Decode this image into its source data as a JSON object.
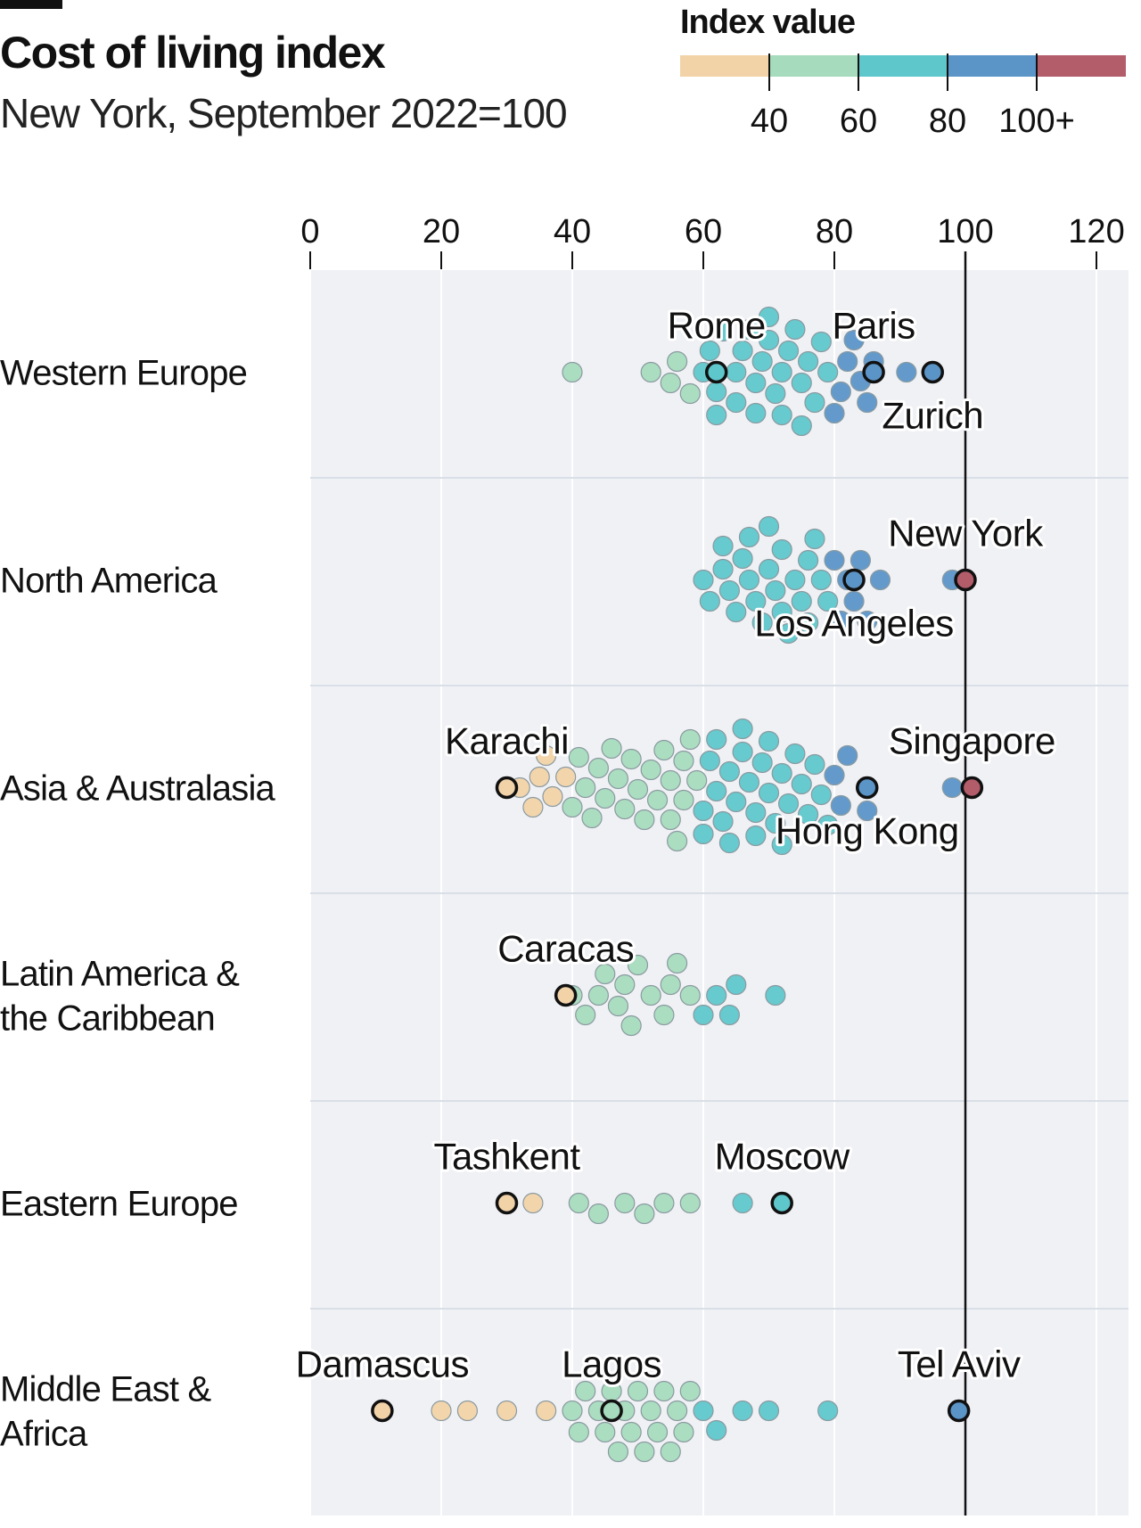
{
  "header": {
    "title": "Cost of living index",
    "subtitle": "New York, September 2022=100",
    "legend_title": "Index value"
  },
  "legend": {
    "ticks": [
      "40",
      "60",
      "80",
      "100+"
    ],
    "colors": [
      "#f2d3a8",
      "#a6dbbd",
      "#5ec7cb",
      "#5b95c8",
      "#b35c6a"
    ]
  },
  "chart_data": {
    "type": "scatter",
    "title": "Cost of living index",
    "subtitle": "New York, September 2022=100",
    "x_ticks": [
      "0",
      "20",
      "40",
      "60",
      "80",
      "100",
      "120"
    ],
    "xlim": [
      0,
      125
    ],
    "reference_line": 100,
    "grid": true,
    "color_bins": [
      {
        "max": 40,
        "color": "#f2d3a8"
      },
      {
        "max": 60,
        "color": "#a6dbbd"
      },
      {
        "max": 80,
        "color": "#5ec7cb"
      },
      {
        "max": 100,
        "color": "#5b95c8"
      },
      {
        "max": 1000,
        "color": "#b35c6a"
      }
    ],
    "rows": [
      {
        "region": "Western Europe",
        "label_lines": [
          "Western Europe"
        ],
        "values": [
          40,
          52,
          55,
          56,
          58,
          60,
          61,
          62,
          62,
          63,
          65,
          65,
          66,
          67,
          68,
          68,
          69,
          70,
          70,
          71,
          72,
          72,
          73,
          74,
          75,
          75,
          76,
          77,
          78,
          79,
          80,
          81,
          82,
          83,
          84,
          85,
          86,
          91,
          95
        ],
        "highlights": [
          {
            "name": "Rome",
            "value": 62
          },
          {
            "name": "Paris",
            "value": 86
          },
          {
            "name": "Zurich",
            "value": 95
          }
        ]
      },
      {
        "region": "North America",
        "label_lines": [
          "North America"
        ],
        "values": [
          60,
          61,
          63,
          63,
          64,
          65,
          66,
          67,
          67,
          68,
          69,
          70,
          70,
          71,
          72,
          72,
          73,
          74,
          75,
          76,
          76,
          77,
          78,
          79,
          80,
          81,
          82,
          83,
          84,
          85,
          87,
          98
        ],
        "highlights": [
          {
            "name": "New York",
            "value": 100
          },
          {
            "name": "Los Angeles",
            "value": 83
          }
        ]
      },
      {
        "region": "Asia & Australasia",
        "label_lines": [
          "Asia & Australasia"
        ],
        "values": [
          32,
          34,
          35,
          36,
          37,
          39,
          40,
          41,
          42,
          43,
          44,
          45,
          46,
          47,
          48,
          49,
          50,
          51,
          52,
          53,
          54,
          55,
          55,
          56,
          57,
          57,
          58,
          59,
          60,
          60,
          61,
          62,
          62,
          63,
          64,
          64,
          65,
          66,
          66,
          67,
          68,
          68,
          69,
          70,
          70,
          71,
          72,
          72,
          73,
          74,
          75,
          76,
          77,
          78,
          79,
          80,
          81,
          82,
          85,
          85,
          98
        ],
        "highlights": [
          {
            "name": "Karachi",
            "value": 30
          },
          {
            "name": "Singapore",
            "value": 101
          },
          {
            "name": "Hong Kong",
            "value": 85
          }
        ]
      },
      {
        "region": "Latin America & the Caribbean",
        "label_lines": [
          "Latin America &",
          "the Caribbean"
        ],
        "values": [
          40,
          42,
          44,
          45,
          47,
          48,
          49,
          50,
          52,
          54,
          55,
          56,
          58,
          60,
          62,
          64,
          65,
          71
        ],
        "highlights": [
          {
            "name": "Caracas",
            "value": 39
          }
        ]
      },
      {
        "region": "Eastern Europe",
        "label_lines": [
          "Eastern Europe"
        ],
        "values": [
          34,
          41,
          44,
          48,
          51,
          54,
          58,
          66
        ],
        "highlights": [
          {
            "name": "Tashkent",
            "value": 30
          },
          {
            "name": "Moscow",
            "value": 72
          }
        ]
      },
      {
        "region": "Middle East & Africa",
        "label_lines": [
          "Middle East &",
          "Africa"
        ],
        "values": [
          20,
          24,
          30,
          36,
          40,
          41,
          42,
          44,
          45,
          46,
          47,
          48,
          49,
          50,
          51,
          52,
          53,
          54,
          55,
          56,
          57,
          58,
          60,
          62,
          66,
          70,
          79
        ],
        "highlights": [
          {
            "name": "Damascus",
            "value": 11
          },
          {
            "name": "Lagos",
            "value": 46
          },
          {
            "name": "Tel Aviv",
            "value": 99
          }
        ]
      }
    ]
  }
}
